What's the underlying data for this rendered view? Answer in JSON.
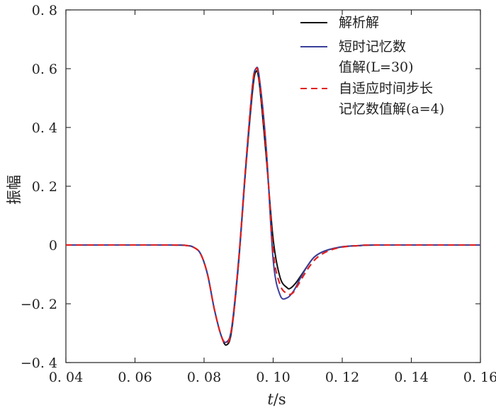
{
  "chart_data": {
    "type": "line",
    "xlabel_italic": "t",
    "xlabel_unit": "/s",
    "ylabel": "振幅",
    "xlim": [
      0.04,
      0.16
    ],
    "ylim": [
      -0.4,
      0.8
    ],
    "xticks": [
      0.04,
      0.06,
      0.08,
      0.1,
      0.12,
      0.14,
      0.16
    ],
    "xtick_labels": [
      "0. 04",
      "0. 06",
      "0. 08",
      "0. 10",
      "0. 12",
      "0. 14",
      "0. 16"
    ],
    "yticks": [
      -0.4,
      -0.2,
      0,
      0.2,
      0.4,
      0.6,
      0.8
    ],
    "ytick_labels": [
      "−0. 4",
      "−0. 2",
      "0",
      "0. 2",
      "0. 4",
      "0. 6",
      "0. 8"
    ],
    "grid": false,
    "legend_position": "top-right",
    "legend": [
      {
        "lines": [
          "解析解"
        ]
      },
      {
        "lines": [
          "短时记忆数",
          "值解(L=30)"
        ]
      },
      {
        "lines": [
          "自适应时间步长",
          "记忆数值解(a=4)"
        ]
      }
    ],
    "series": [
      {
        "color": "#111111",
        "dash": "solid",
        "x": [
          0.04,
          0.07,
          0.075,
          0.077,
          0.079,
          0.081,
          0.083,
          0.085,
          0.0865,
          0.088,
          0.09,
          0.092,
          0.094,
          0.095,
          0.096,
          0.098,
          0.1,
          0.102,
          0.104,
          0.105,
          0.1065,
          0.108,
          0.11,
          0.112,
          0.115,
          0.12,
          0.125,
          0.13,
          0.16
        ],
        "y": [
          0,
          0,
          -0.002,
          -0.008,
          -0.03,
          -0.1,
          -0.22,
          -0.31,
          -0.34,
          -0.29,
          -0.06,
          0.25,
          0.52,
          0.59,
          0.55,
          0.3,
          0.02,
          -0.11,
          -0.145,
          -0.147,
          -0.13,
          -0.105,
          -0.07,
          -0.04,
          -0.02,
          -0.006,
          -0.002,
          0,
          0
        ]
      },
      {
        "color": "#3a3f9a",
        "dash": "solid",
        "x": [
          0.04,
          0.07,
          0.075,
          0.077,
          0.079,
          0.081,
          0.083,
          0.085,
          0.0865,
          0.088,
          0.09,
          0.092,
          0.094,
          0.095,
          0.096,
          0.098,
          0.1,
          0.102,
          0.104,
          0.106,
          0.108,
          0.11,
          0.112,
          0.115,
          0.12,
          0.125,
          0.13,
          0.16
        ],
        "y": [
          0,
          0,
          -0.002,
          -0.008,
          -0.03,
          -0.1,
          -0.22,
          -0.31,
          -0.33,
          -0.28,
          -0.05,
          0.26,
          0.54,
          0.6,
          0.57,
          0.33,
          -0.05,
          -0.17,
          -0.18,
          -0.155,
          -0.11,
          -0.07,
          -0.04,
          -0.02,
          -0.006,
          -0.002,
          0,
          0
        ]
      },
      {
        "color": "#e02020",
        "dash": "dashed",
        "x": [
          0.04,
          0.07,
          0.075,
          0.077,
          0.079,
          0.081,
          0.083,
          0.085,
          0.0865,
          0.088,
          0.09,
          0.092,
          0.094,
          0.095,
          0.096,
          0.098,
          0.1,
          0.102,
          0.104,
          0.1055,
          0.107,
          0.109,
          0.111,
          0.113,
          0.116,
          0.12,
          0.125,
          0.13,
          0.16
        ],
        "y": [
          0,
          0,
          -0.002,
          -0.008,
          -0.03,
          -0.1,
          -0.22,
          -0.31,
          -0.335,
          -0.285,
          -0.055,
          0.26,
          0.54,
          0.6,
          0.56,
          0.32,
          -0.02,
          -0.135,
          -0.165,
          -0.165,
          -0.14,
          -0.1,
          -0.065,
          -0.04,
          -0.02,
          -0.007,
          -0.002,
          0,
          0
        ]
      }
    ]
  }
}
